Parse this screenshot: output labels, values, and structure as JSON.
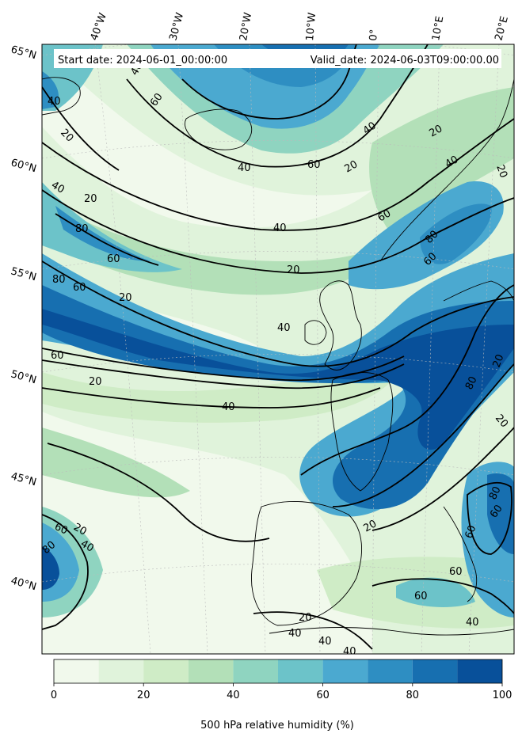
{
  "header": {
    "start_label": "Start date: 2024-06-01_00:00:00",
    "valid_label": "Valid_date: 2024-06-03T09:00:00.00"
  },
  "lon_labels": [
    "40°W",
    "30°W",
    "20°W",
    "10°W",
    "0°",
    "10°E",
    "20°E"
  ],
  "lat_labels": [
    "65°N",
    "60°N",
    "55°N",
    "50°N",
    "45°N",
    "40°N"
  ],
  "colorbar": {
    "label": "500 hPa relative humidity (%)",
    "levels": [
      0,
      10,
      20,
      30,
      40,
      50,
      60,
      70,
      80,
      90,
      100
    ],
    "colors": [
      "#f1f9ec",
      "#e0f3db",
      "#cfecc6",
      "#b3e0b8",
      "#8fd4c0",
      "#6cc3c9",
      "#4ba9d0",
      "#2e8ec2",
      "#176fb0",
      "#08509a"
    ],
    "tick_values": [
      "0",
      "20",
      "40",
      "60",
      "80",
      "100"
    ]
  },
  "contour_labels": [
    "20",
    "40",
    "60",
    "80"
  ],
  "colors": {
    "contour_line": "#000000",
    "coastline": "#000000",
    "gridline": "#bbbbbb"
  }
}
